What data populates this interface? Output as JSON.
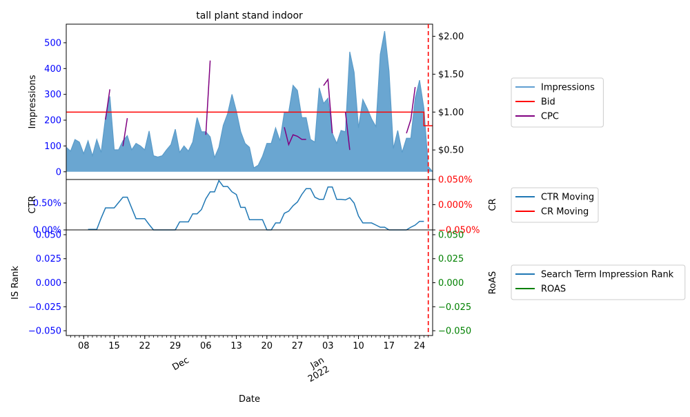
{
  "chart_data": {
    "type": "multi-panel time series",
    "title": "tall plant stand indoor",
    "xlabel": "Date",
    "x_tick_labels": [
      {
        "date": "2021-11-08",
        "label": "08"
      },
      {
        "date": "2021-11-15",
        "label": "15"
      },
      {
        "date": "2021-11-22",
        "label": "22"
      },
      {
        "date": "2021-11-29",
        "label": "29"
      },
      {
        "date": "2021-12-06",
        "label": "06"
      },
      {
        "date": "2021-12-13",
        "label": "13"
      },
      {
        "date": "2021-12-20",
        "label": "20"
      },
      {
        "date": "2021-12-27",
        "label": "27"
      },
      {
        "date": "2022-01-03",
        "label": "03"
      },
      {
        "date": "2022-01-10",
        "label": "10"
      },
      {
        "date": "2022-01-17",
        "label": "17"
      },
      {
        "date": "2022-01-24",
        "label": "24"
      }
    ],
    "x_month_labels": [
      {
        "date": "2021-12-01",
        "label": "Dec"
      },
      {
        "date": "2022-01-01",
        "label": "Jan\n2022"
      }
    ],
    "x_start": "2021-11-04",
    "x_end": "2022-01-27",
    "marker_date": "2022-01-26",
    "panels": [
      {
        "ylabel": "Impressions",
        "y2label": "",
        "ylim": [
          -30,
          572
        ],
        "y2lim": [
          0.11,
          2.16
        ],
        "y_ticks": [
          0,
          100,
          200,
          300,
          400,
          500
        ],
        "y2_ticks": [
          0.5,
          1.0,
          1.5,
          2.0
        ],
        "y2_tick_labels": [
          "$0.50",
          "$1.00",
          "$1.50",
          "$2.00"
        ],
        "legend_position": "right",
        "legend": [
          {
            "label": "Impressions",
            "color": "#5f9ed1"
          },
          {
            "label": "Bid",
            "color": "#ff0000"
          },
          {
            "label": "CPC",
            "color": "#800080"
          }
        ],
        "series": [
          {
            "name": "Impressions",
            "kind": "area",
            "axis": "left",
            "values": [
              95,
              80,
              125,
              115,
              70,
              120,
              62,
              125,
              75,
              210,
              292,
              85,
              85,
              120,
              140,
              85,
              110,
              100,
              85,
              158,
              62,
              57,
              62,
              85,
              105,
              165,
              75,
              100,
              80,
              115,
              210,
              155,
              155,
              135,
              55,
              95,
              180,
              225,
              300,
              235,
              155,
              110,
              95,
              15,
              25,
              60,
              110,
              110,
              170,
              120,
              230,
              230,
              335,
              315,
              210,
              210,
              125,
              115,
              325,
              265,
              285,
              150,
              110,
              160,
              155,
              465,
              385,
              170,
              280,
              245,
              205,
              175,
              455,
              545,
              390,
              90,
              160,
              75,
              130,
              130,
              285,
              355,
              245,
              20,
              0
            ]
          },
          {
            "name": "Bid",
            "kind": "step",
            "axis": "right",
            "points": [
              [
                "2021-11-04",
                1.0
              ],
              [
                "2022-01-25",
                1.0
              ],
              [
                "2022-01-25",
                0.82
              ],
              [
                "2022-01-27",
                0.82
              ]
            ]
          },
          {
            "name": "CPC",
            "kind": "line-segments",
            "axis": "right",
            "segments": [
              [
                [
                  "2021-11-13",
                  0.9
                ],
                [
                  "2021-11-14",
                  1.3
                ]
              ],
              [
                [
                  "2021-11-17",
                  0.55
                ],
                [
                  "2021-11-18",
                  0.92
                ]
              ],
              [
                [
                  "2021-12-06",
                  0.7
                ],
                [
                  "2021-12-07",
                  1.68
                ]
              ],
              [
                [
                  "2021-12-24",
                  0.8
                ],
                [
                  "2021-12-25",
                  0.57
                ],
                [
                  "2021-12-26",
                  0.7
                ],
                [
                  "2021-12-27",
                  0.68
                ],
                [
                  "2021-12-28",
                  0.64
                ],
                [
                  "2021-12-29",
                  0.64
                ]
              ],
              [
                [
                  "2022-01-02",
                  1.35
                ],
                [
                  "2022-01-03",
                  1.43
                ],
                [
                  "2022-01-04",
                  0.72
                ]
              ],
              [
                [
                  "2022-01-07",
                  1.0
                ],
                [
                  "2022-01-08",
                  0.5
                ]
              ],
              [
                [
                  "2022-01-21",
                  0.72
                ],
                [
                  "2022-01-22",
                  0.9
                ],
                [
                  "2022-01-23",
                  1.33
                ]
              ]
            ]
          }
        ]
      },
      {
        "ylabel": "CTR",
        "y2label": "CR",
        "ylim": [
          0,
          0.0094
        ],
        "y2lim": [
          -0.05,
          0.05
        ],
        "y_ticks": [
          0,
          0.005
        ],
        "y_tick_labels": [
          "0.00%",
          "0.50%"
        ],
        "y2_ticks": [
          -0.05,
          0.0,
          0.05
        ],
        "y2_tick_labels": [
          "−0.050%",
          "0.000%",
          "0.050%"
        ],
        "legend_position": "right",
        "legend": [
          {
            "label": "CTR Moving",
            "color": "#1f77b4"
          },
          {
            "label": "CR Moving",
            "color": "#ff0000"
          }
        ],
        "series": [
          {
            "name": "CTR Moving",
            "kind": "line",
            "axis": "left",
            "start": "2021-11-09",
            "values": [
              0.0001,
              0.0001,
              0.0001,
              0.0022,
              0.0041,
              0.0041,
              0.0041,
              0.0051,
              0.0061,
              0.0061,
              0.0041,
              0.0021,
              0.0021,
              0.0021,
              0.001,
              0.0,
              0.0,
              0.0,
              0.0,
              0.0,
              0.0,
              0.0015,
              0.0015,
              0.0015,
              0.003,
              0.003,
              0.0038,
              0.0058,
              0.0071,
              0.0071,
              0.0092,
              0.0081,
              0.0081,
              0.0071,
              0.0066,
              0.0042,
              0.0042,
              0.0019,
              0.0019,
              0.0019,
              0.0019,
              0.0,
              0.0,
              0.0013,
              0.0013,
              0.0031,
              0.0035,
              0.0045,
              0.0052,
              0.0066,
              0.0077,
              0.0077,
              0.0061,
              0.0057,
              0.0057,
              0.008,
              0.008,
              0.0057,
              0.0057,
              0.0056,
              0.006,
              0.005,
              0.0026,
              0.0013,
              0.0013,
              0.0013,
              0.0009,
              0.0005,
              0.0005,
              0.0,
              0.0,
              0.0,
              0.0,
              0.0,
              0.0005,
              0.0009,
              0.0016,
              0.0016
            ]
          }
        ]
      },
      {
        "ylabel": "IS Rank",
        "y2label": "RoAS",
        "ylim": [
          -0.055,
          0.055
        ],
        "y2lim": [
          -0.055,
          0.055
        ],
        "y_ticks": [
          -0.05,
          -0.025,
          0.0,
          0.025,
          0.05
        ],
        "y_tick_labels": [
          "−0.050",
          "−0.025",
          "0.000",
          "0.025",
          "0.050"
        ],
        "y2_ticks": [
          -0.05,
          -0.025,
          0.0,
          0.025,
          0.05
        ],
        "y2_tick_labels": [
          "−0.050",
          "−0.025",
          "0.000",
          "0.025",
          "0.050"
        ],
        "legend_position": "right",
        "legend": [
          {
            "label": "Search Term Impression Rank",
            "color": "#1f77b4"
          },
          {
            "label": "ROAS",
            "color": "#008000"
          }
        ],
        "series": []
      }
    ],
    "colors": {
      "left_axis": "#0000ff",
      "panel2_right_axis": "#ff0000",
      "panel3_right_axis": "#008000",
      "area_fill": "#6aa6d1",
      "area_line": "#5a9bc9",
      "line_blue": "#1f77b4",
      "bid": "#ff0000",
      "cpc": "#800080",
      "marker": "#ff0000"
    }
  }
}
